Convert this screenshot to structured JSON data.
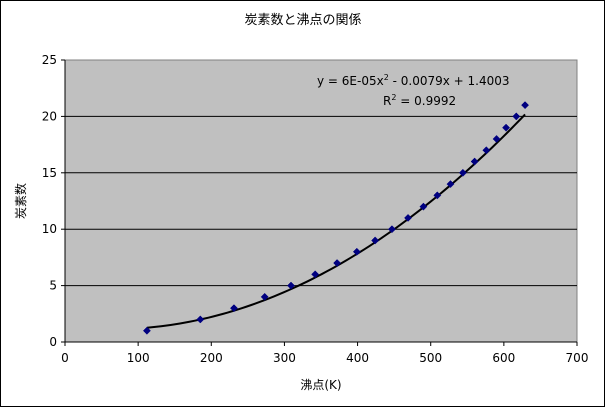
{
  "chart_data": {
    "type": "scatter",
    "title": "炭素数と沸点の関係",
    "xlabel": "沸点(K)",
    "ylabel": "炭素数",
    "xlim": [
      0,
      700
    ],
    "ylim": [
      0,
      25
    ],
    "x_ticks": [
      0,
      100,
      200,
      300,
      400,
      500,
      600,
      700
    ],
    "y_ticks": [
      0,
      5,
      10,
      15,
      20,
      25
    ],
    "grid": {
      "x": false,
      "y": true
    },
    "legend": "none",
    "plot_background": "#c0c0c0",
    "series": [
      {
        "marker": "diamond",
        "color": "#000080",
        "points": [
          {
            "x": 112,
            "y": 1
          },
          {
            "x": 185,
            "y": 2
          },
          {
            "x": 231,
            "y": 3
          },
          {
            "x": 273,
            "y": 4
          },
          {
            "x": 309,
            "y": 5
          },
          {
            "x": 342,
            "y": 6
          },
          {
            "x": 372,
            "y": 7
          },
          {
            "x": 399,
            "y": 8
          },
          {
            "x": 424,
            "y": 9
          },
          {
            "x": 447,
            "y": 10
          },
          {
            "x": 469,
            "y": 11
          },
          {
            "x": 490,
            "y": 12
          },
          {
            "x": 509,
            "y": 13
          },
          {
            "x": 527,
            "y": 14
          },
          {
            "x": 544,
            "y": 15
          },
          {
            "x": 560,
            "y": 16
          },
          {
            "x": 576,
            "y": 17
          },
          {
            "x": 590,
            "y": 18
          },
          {
            "x": 603,
            "y": 19
          },
          {
            "x": 617,
            "y": 20
          },
          {
            "x": 629,
            "y": 21
          }
        ]
      }
    ],
    "trendline": {
      "type": "polynomial",
      "coefficients": [
        6e-05,
        -0.0079,
        1.4003
      ],
      "x_range": [
        112,
        629
      ],
      "color": "#000000",
      "equation": {
        "prefix": "y = 6E-05x",
        "exponent": "2",
        "suffix": " - 0.0079x + 1.4003"
      },
      "r_squared": {
        "prefix": "R",
        "exponent": "2",
        "suffix": " = 0.9992"
      }
    }
  }
}
